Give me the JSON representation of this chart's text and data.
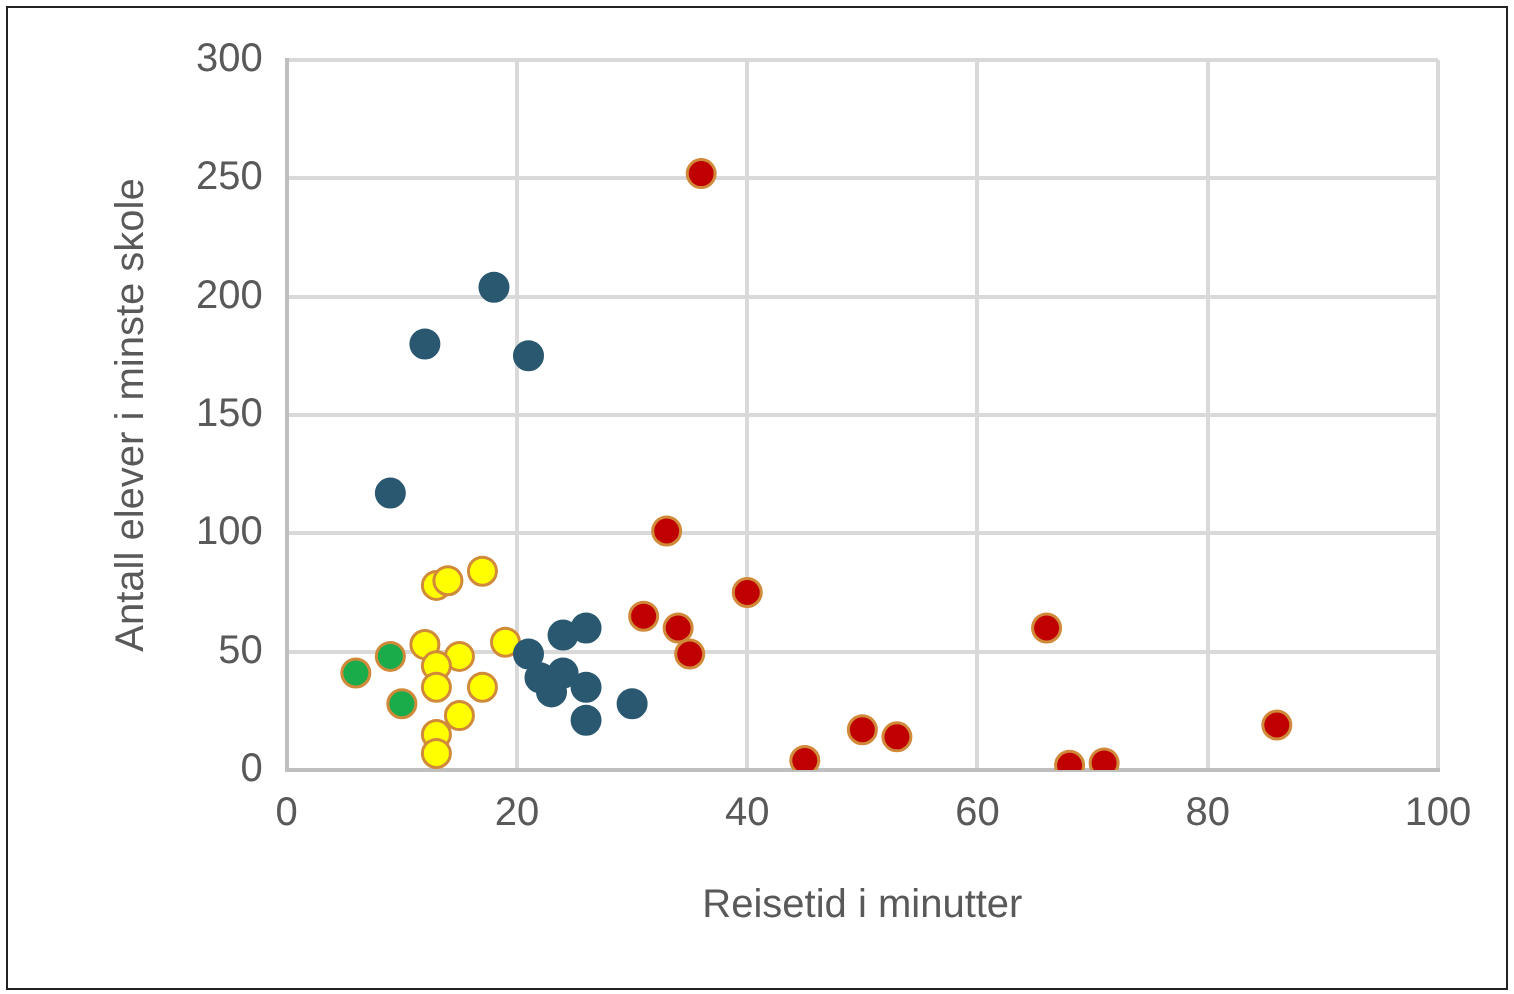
{
  "chart_data": {
    "type": "scatter",
    "xlabel": "Reisetid i minutter",
    "ylabel": "Antall elever i minste skole",
    "xlim": [
      0,
      100
    ],
    "xticks": [
      0,
      20,
      40,
      60,
      80,
      100
    ],
    "ylim": [
      0,
      300
    ],
    "yticks": [
      0,
      50,
      100,
      150,
      200,
      250,
      300
    ],
    "grid": true,
    "legend": false,
    "marker": "circle",
    "series": [
      {
        "color": "#2a5870",
        "x": [
          18,
          12,
          21,
          9,
          21,
          24,
          26,
          22,
          23,
          24,
          26,
          26,
          30
        ],
        "values": [
          204,
          180,
          175,
          117,
          49,
          57,
          60,
          39,
          33,
          41,
          35,
          21,
          28
        ]
      },
      {
        "color": "#ffff00",
        "x": [
          13,
          14,
          17,
          12,
          15,
          13,
          19,
          13,
          17,
          15,
          13,
          13
        ],
        "values": [
          78,
          80,
          84,
          53,
          48,
          44,
          54,
          35,
          35,
          23,
          15,
          7
        ]
      },
      {
        "color": "#1aab4b",
        "x": [
          6,
          9,
          10
        ],
        "values": [
          41,
          48,
          28
        ]
      },
      {
        "color": "#c00000",
        "x": [
          36,
          33,
          40,
          31,
          34,
          35,
          66,
          45,
          50,
          53,
          68,
          71,
          86
        ],
        "values": [
          252,
          101,
          75,
          65,
          60,
          49,
          60,
          4,
          17,
          14,
          2,
          3,
          19
        ]
      }
    ]
  }
}
